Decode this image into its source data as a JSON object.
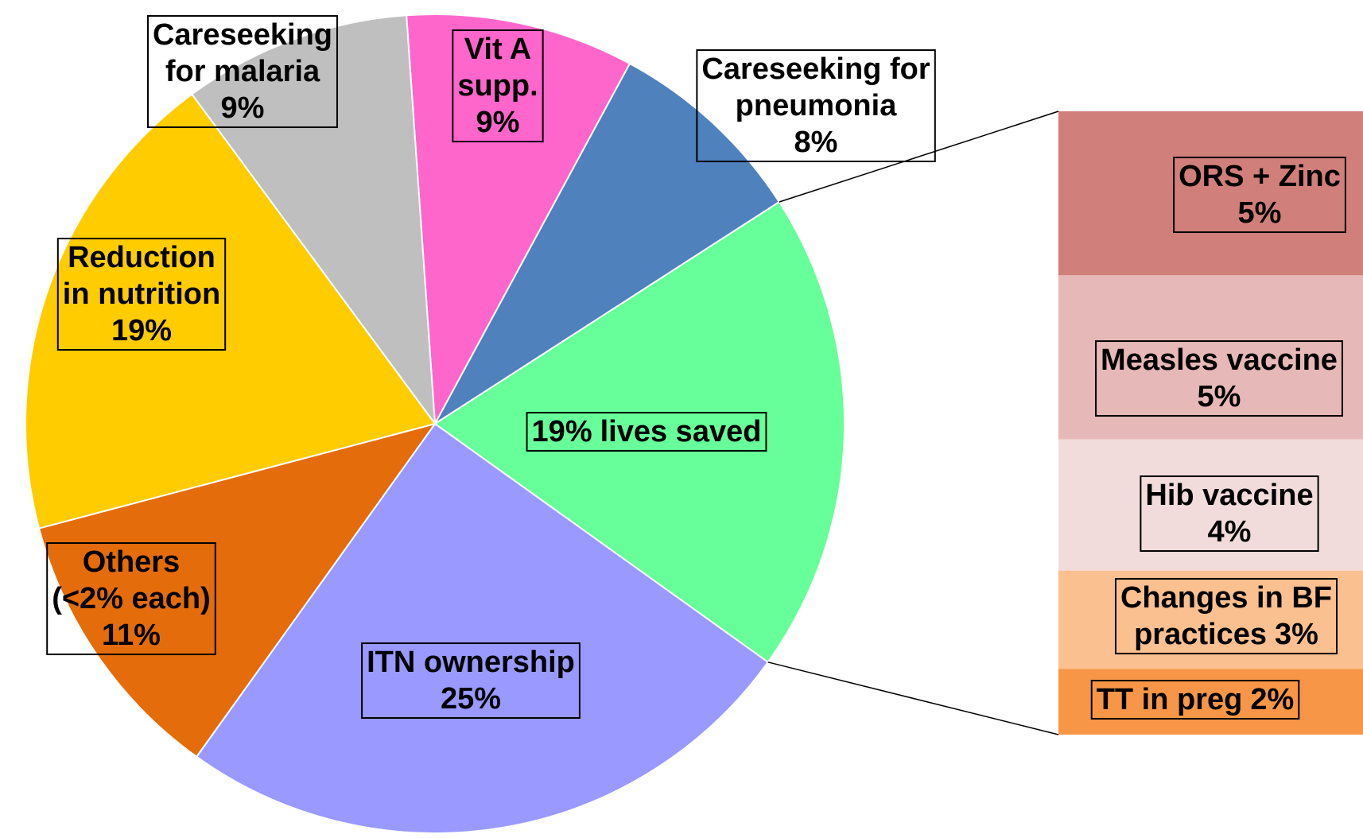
{
  "chart_data": {
    "type": "pie",
    "categories": [
      "Vit A supp.",
      "Careseeking for pneumonia",
      "lives saved",
      "ITN ownership",
      "Others (<2% each)",
      "Reduction in nutrition",
      "Careseeking for malaria"
    ],
    "values": [
      9,
      8,
      19,
      25,
      11,
      19,
      9
    ],
    "value_labels": [
      "9%",
      "8%",
      "19%",
      "25%",
      "11%",
      "19%",
      "9%"
    ],
    "colors": [
      "#ff66cc",
      "#4f81bd",
      "#66ff99",
      "#9999ff",
      "#e46c0a",
      "#ffcc00",
      "#bfbfbf"
    ],
    "breakdown": {
      "categories": [
        "ORS + Zinc",
        "Measles vaccine",
        "Hib vaccine",
        "Changes in BF practices",
        "TT in preg"
      ],
      "values": [
        5,
        5,
        4,
        3,
        2
      ],
      "value_labels": [
        "5%",
        "5%",
        "4%",
        "3%",
        "2%"
      ],
      "colors": [
        "#d07f7a",
        "#e6b8b7",
        "#f2dcdb",
        "#fac090",
        "#f79646"
      ]
    }
  }
}
